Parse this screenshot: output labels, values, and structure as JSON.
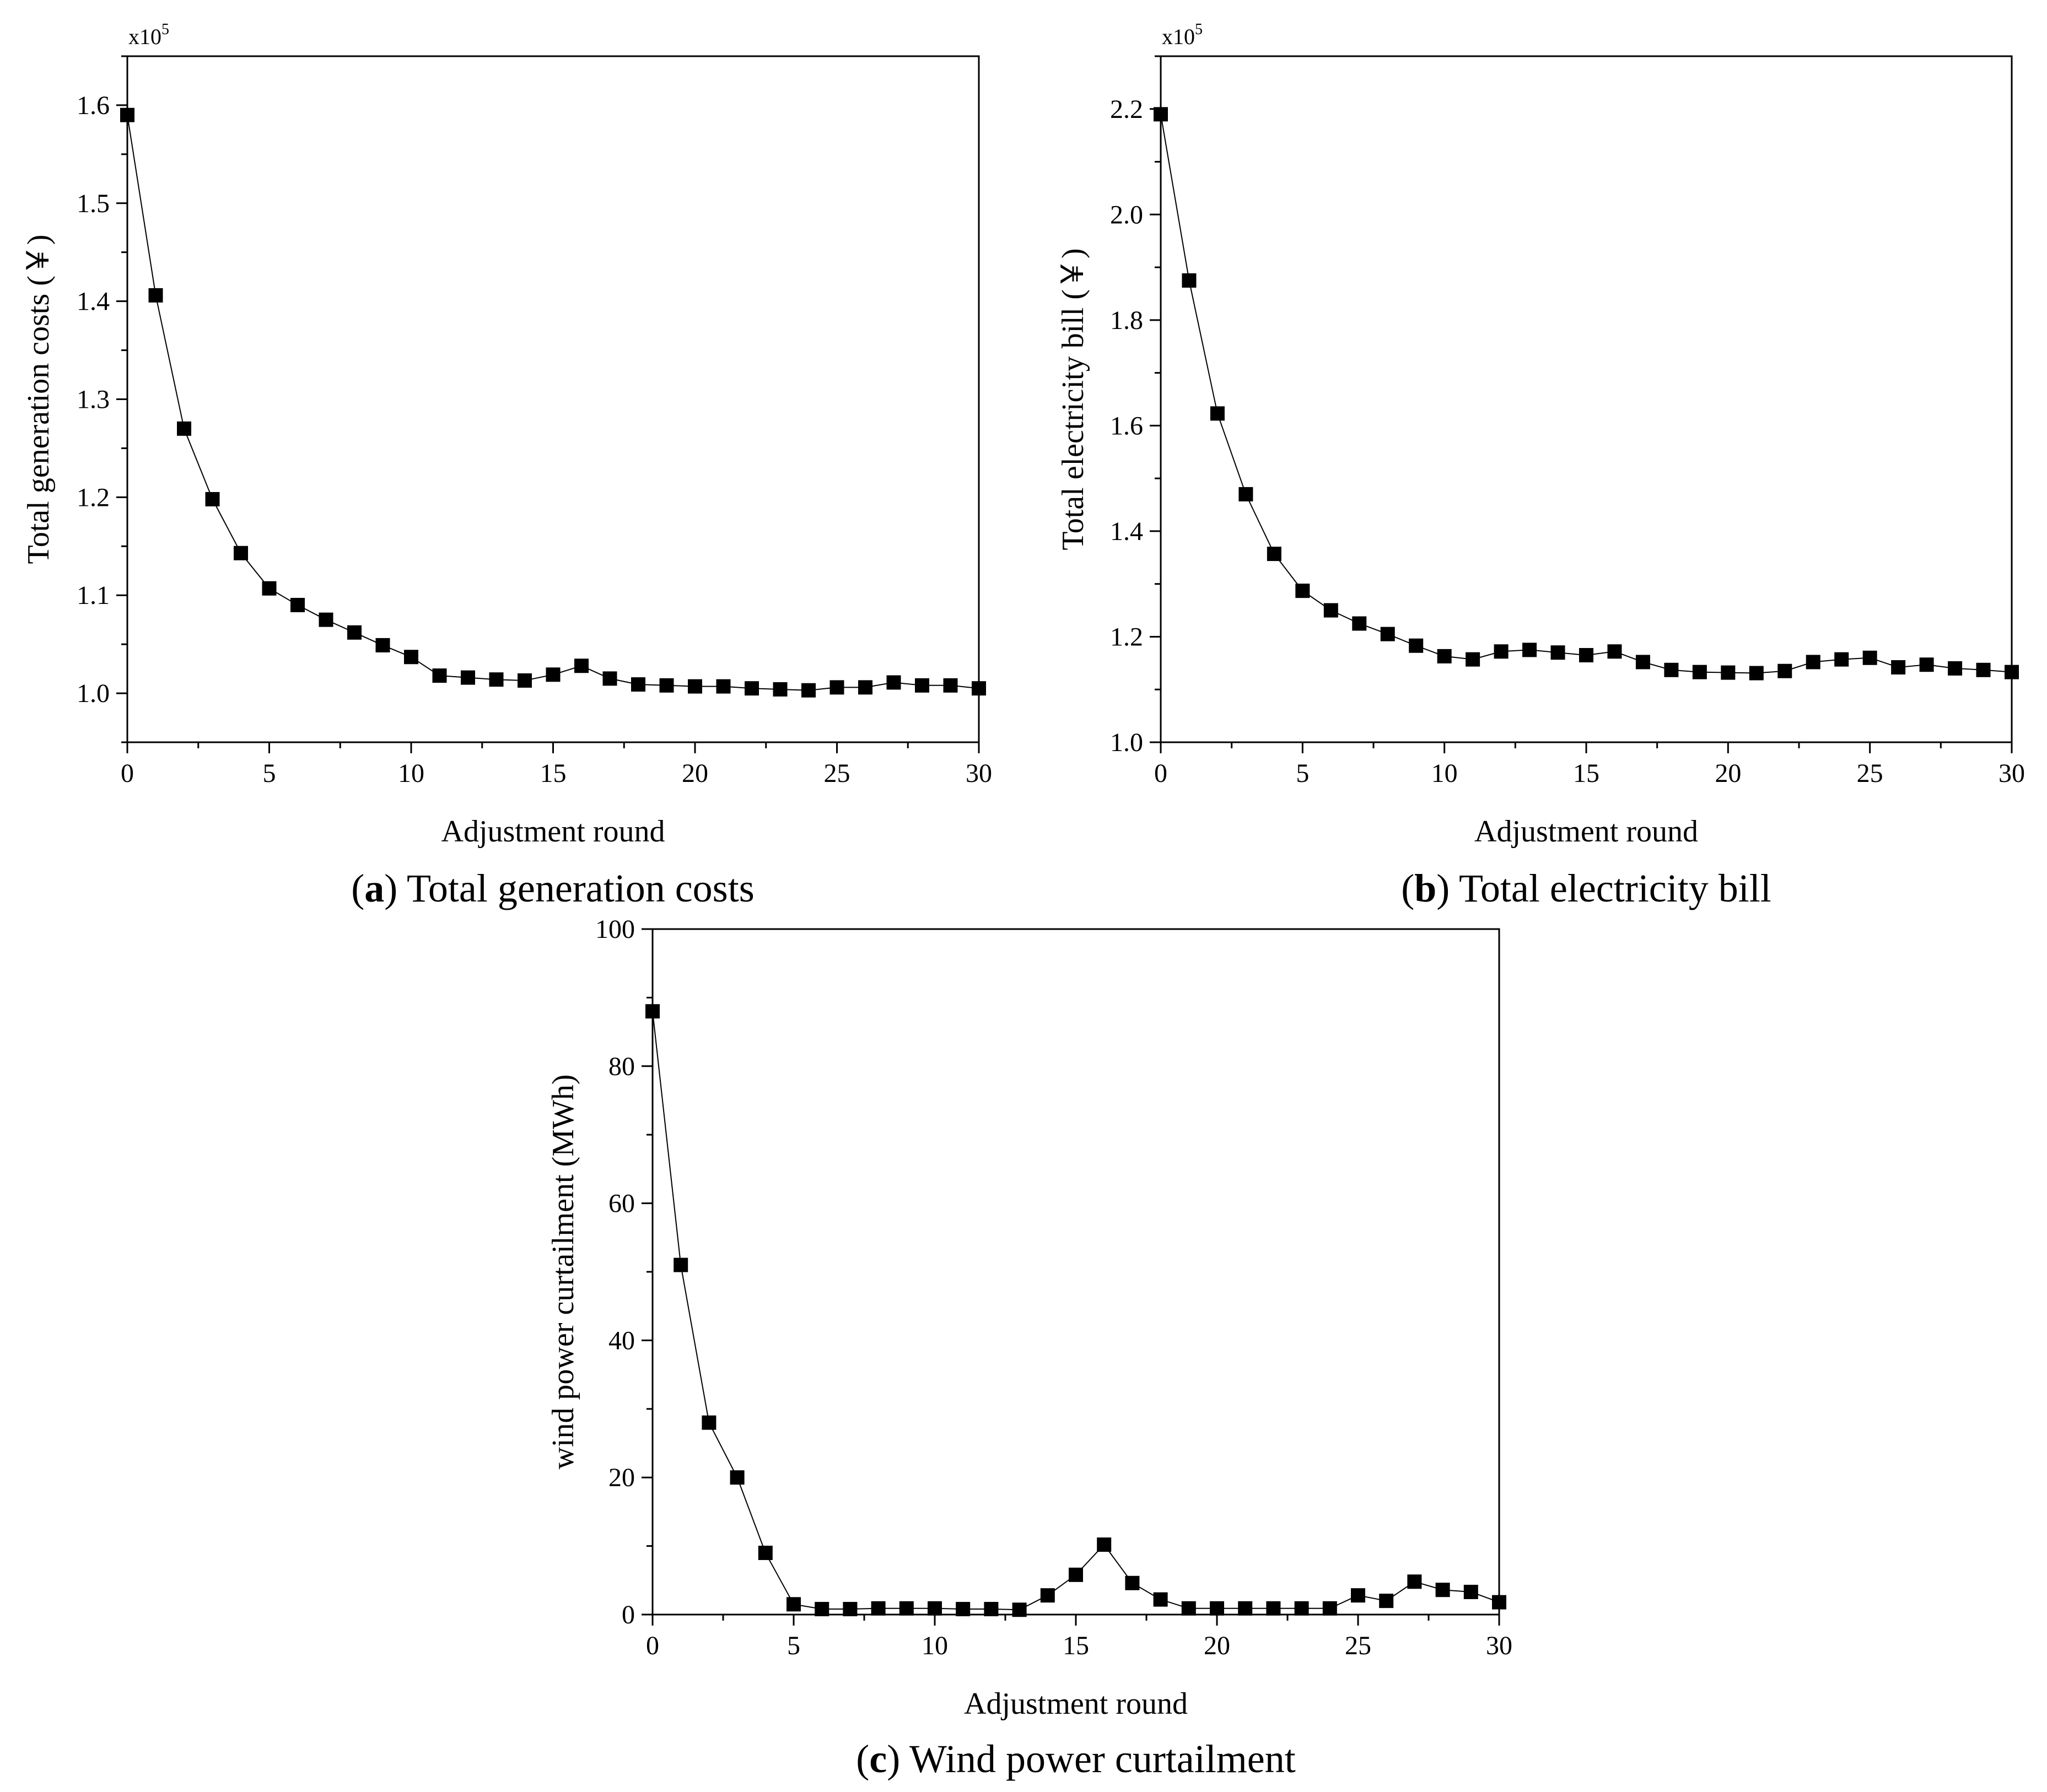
{
  "chart_data": [
    {
      "id": "a",
      "type": "line",
      "title": "Total generation costs",
      "caption_letter": "a",
      "caption_text": "Total generation costs",
      "xlabel": "Adjustment round",
      "ylabel": "Total generation costs (￥)",
      "sci_base": "x10",
      "sci_exp": "5",
      "xlim": [
        0,
        30
      ],
      "ylim": [
        0.95,
        1.65
      ],
      "xticks": [
        0,
        5,
        10,
        15,
        20,
        25,
        30
      ],
      "yticks": [
        1.0,
        1.1,
        1.2,
        1.3,
        1.4,
        1.5,
        1.6
      ],
      "ytick_labels": [
        "1.0",
        "1.1",
        "1.2",
        "1.3",
        "1.4",
        "1.5",
        "1.6"
      ],
      "marker": "square",
      "series": [
        {
          "name": "Total generation costs",
          "x": [
            0,
            1,
            2,
            3,
            4,
            5,
            6,
            7,
            8,
            9,
            10,
            11,
            12,
            13,
            14,
            15,
            16,
            17,
            18,
            19,
            20,
            21,
            22,
            23,
            24,
            25,
            26,
            27,
            28,
            29,
            30
          ],
          "values": [
            1.59,
            1.406,
            1.27,
            1.198,
            1.143,
            1.107,
            1.09,
            1.075,
            1.062,
            1.049,
            1.037,
            1.018,
            1.016,
            1.014,
            1.013,
            1.019,
            1.028,
            1.015,
            1.009,
            1.008,
            1.007,
            1.007,
            1.005,
            1.004,
            1.003,
            1.006,
            1.006,
            1.011,
            1.008,
            1.008,
            1.005
          ]
        }
      ]
    },
    {
      "id": "b",
      "type": "line",
      "title": "Total electricity bill",
      "caption_letter": "b",
      "caption_text": "Total electricity bill",
      "xlabel": "Adjustment round",
      "ylabel": "Total electricity bill (￥)",
      "sci_base": "x10",
      "sci_exp": "5",
      "xlim": [
        0,
        30
      ],
      "ylim": [
        1.0,
        2.3
      ],
      "xticks": [
        0,
        5,
        10,
        15,
        20,
        25,
        30
      ],
      "yticks": [
        1.0,
        1.2,
        1.4,
        1.6,
        1.8,
        2.0,
        2.2
      ],
      "ytick_labels": [
        "1.0",
        "1.2",
        "1.4",
        "1.6",
        "1.8",
        "2.0",
        "2.2"
      ],
      "marker": "square",
      "series": [
        {
          "name": "Total electricity bill",
          "x": [
            0,
            1,
            2,
            3,
            4,
            5,
            6,
            7,
            8,
            9,
            10,
            11,
            12,
            13,
            14,
            15,
            16,
            17,
            18,
            19,
            20,
            21,
            22,
            23,
            24,
            25,
            26,
            27,
            28,
            29,
            30
          ],
          "values": [
            2.19,
            1.875,
            1.623,
            1.47,
            1.357,
            1.287,
            1.25,
            1.225,
            1.205,
            1.183,
            1.163,
            1.157,
            1.172,
            1.175,
            1.17,
            1.165,
            1.172,
            1.152,
            1.137,
            1.133,
            1.132,
            1.131,
            1.135,
            1.152,
            1.157,
            1.16,
            1.142,
            1.147,
            1.14,
            1.137,
            1.133
          ]
        }
      ]
    },
    {
      "id": "c",
      "type": "line",
      "title": "Wind power curtailment",
      "caption_letter": "c",
      "caption_text": "Wind power curtailment",
      "xlabel": "Adjustment round",
      "ylabel": "wind power curtailment (MWh)",
      "xlim": [
        0,
        30
      ],
      "ylim": [
        0,
        100
      ],
      "xticks": [
        0,
        5,
        10,
        15,
        20,
        25,
        30
      ],
      "yticks": [
        0,
        20,
        40,
        60,
        80,
        100
      ],
      "ytick_labels": [
        "0",
        "20",
        "40",
        "60",
        "80",
        "100"
      ],
      "marker": "square",
      "series": [
        {
          "name": "Wind power curtailment",
          "x": [
            0,
            1,
            2,
            3,
            4,
            5,
            6,
            7,
            8,
            9,
            10,
            11,
            12,
            13,
            14,
            15,
            16,
            17,
            18,
            19,
            20,
            21,
            22,
            23,
            24,
            25,
            26,
            27,
            28,
            29,
            30
          ],
          "values": [
            88,
            51,
            28,
            20,
            9,
            1.5,
            0.8,
            0.8,
            0.9,
            0.9,
            0.9,
            0.8,
            0.8,
            0.7,
            2.8,
            5.8,
            10.2,
            4.6,
            2.2,
            0.9,
            0.9,
            0.9,
            0.9,
            0.9,
            0.9,
            2.8,
            2.0,
            4.8,
            3.6,
            3.3,
            1.8
          ]
        }
      ]
    }
  ]
}
